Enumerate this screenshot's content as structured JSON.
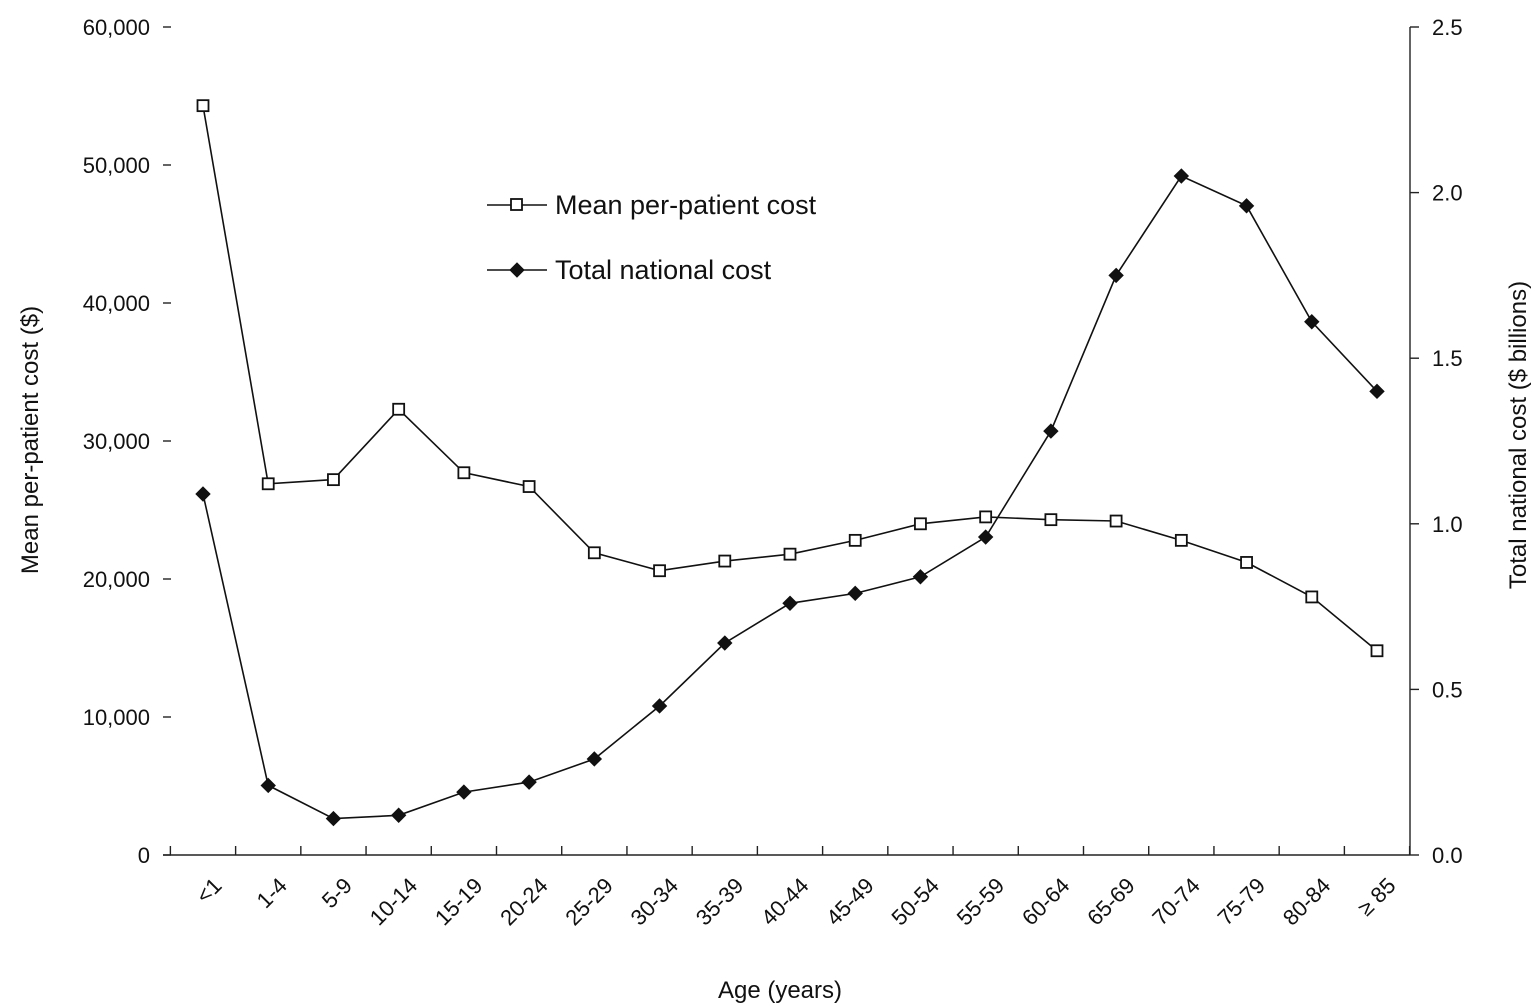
{
  "chart_data": {
    "type": "line",
    "xlabel": "Age (years)",
    "ylabel": "Mean per-patient cost ($)",
    "y2label": "Total national cost ($ billions)",
    "categories": [
      "<1",
      "1-4",
      "5-9",
      "10-14",
      "15-19",
      "20-24",
      "25-29",
      "30-34",
      "35-39",
      "40-44",
      "45-49",
      "50-54",
      "55-59",
      "60-64",
      "65-69",
      "70-74",
      "75-79",
      "80-84",
      "≥ 85"
    ],
    "ylim": [
      0,
      60000
    ],
    "y_ticks": [
      0,
      10000,
      20000,
      30000,
      40000,
      50000,
      60000
    ],
    "y_tick_labels": [
      "0",
      "10,000",
      "20,000",
      "30,000",
      "40,000",
      "50,000",
      "60,000"
    ],
    "y2lim": [
      0,
      2.5
    ],
    "y2_ticks": [
      0,
      0.5,
      1.0,
      1.5,
      2.0,
      2.5
    ],
    "y2_tick_labels": [
      "0.0",
      "0.5",
      "1.0",
      "1.5",
      "2.0",
      "2.5"
    ],
    "grid": false,
    "legend_position": "upper-center",
    "series": [
      {
        "name": "Mean per-patient cost",
        "axis": "left",
        "marker": "open-square",
        "values": [
          54300,
          26900,
          27200,
          32300,
          27700,
          26700,
          21900,
          20600,
          21300,
          21800,
          22800,
          24000,
          24500,
          24300,
          24200,
          22800,
          21200,
          18700,
          14800
        ]
      },
      {
        "name": "Total national cost",
        "axis": "right",
        "marker": "filled-diamond",
        "values": [
          1.09,
          0.21,
          0.11,
          0.12,
          0.19,
          0.22,
          0.29,
          0.45,
          0.64,
          0.76,
          0.79,
          0.84,
          0.96,
          1.28,
          1.75,
          2.05,
          1.96,
          1.61,
          1.4
        ]
      }
    ]
  }
}
